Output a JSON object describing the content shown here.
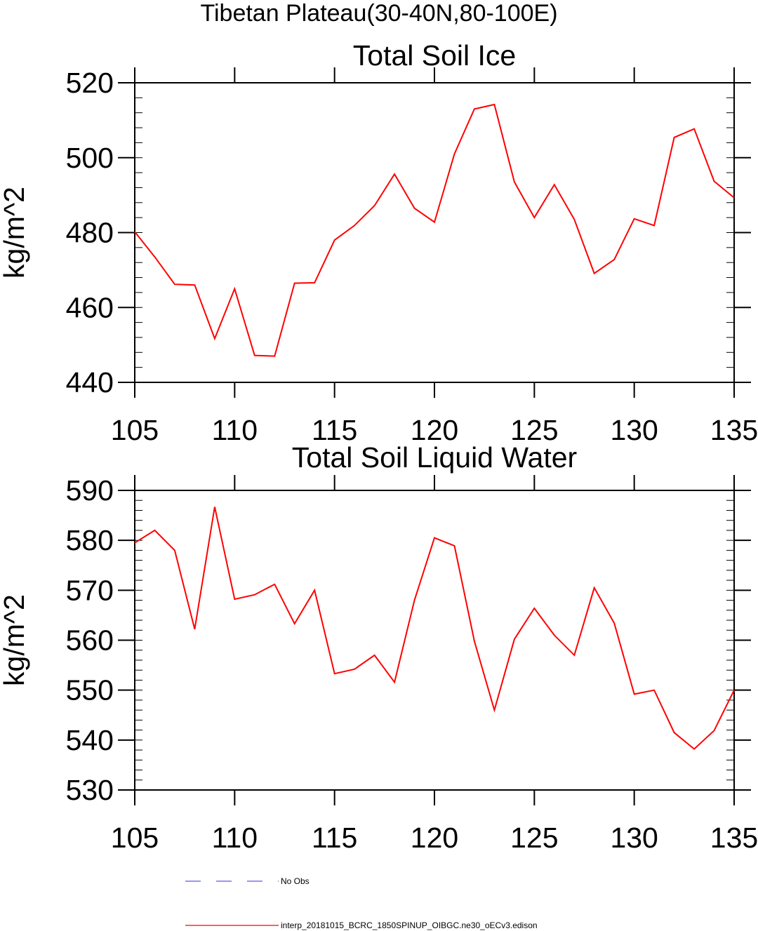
{
  "figure": {
    "suptitle": "Tibetan Plateau(30-40N,80-100E)",
    "legend": [
      {
        "label": "No Obs",
        "color": "#5a5ae6",
        "style": "dashed"
      },
      {
        "label": "interp_20181015_BCRC_1850SPINUP_OIBGC.ne30_oECv3.edison",
        "color": "#ff0000",
        "style": "solid"
      }
    ]
  },
  "chart_data": [
    {
      "type": "line",
      "title": "Total Soil Ice",
      "xlabel": "",
      "ylabel": "kg/m^2",
      "xlim": [
        105,
        135
      ],
      "ylim": [
        440,
        520
      ],
      "xticks": [
        105,
        110,
        115,
        120,
        125,
        130,
        135
      ],
      "yticks": [
        440,
        460,
        480,
        500,
        520
      ],
      "y_minor_step": 4,
      "grid": false,
      "series": [
        {
          "color": "#ff0000",
          "x": [
            105,
            106,
            107,
            108,
            109,
            110,
            111,
            112,
            113,
            114,
            115,
            116,
            117,
            118,
            119,
            120,
            121,
            122,
            123,
            124,
            125,
            126,
            127,
            128,
            129,
            130,
            131,
            132,
            133,
            134,
            135
          ],
          "values": [
            480.2,
            473.5,
            466.2,
            466.0,
            451.7,
            465.0,
            447.2,
            447.0,
            466.5,
            466.6,
            478.0,
            481.9,
            487.2,
            495.6,
            486.5,
            482.8,
            501.0,
            513.0,
            514.2,
            493.5,
            484.0,
            492.8,
            483.5,
            469.1,
            472.8,
            483.7,
            481.9,
            505.4,
            507.7,
            493.7,
            489.3
          ]
        }
      ]
    },
    {
      "type": "line",
      "title": "Total Soil Liquid Water",
      "xlabel": "",
      "ylabel": "kg/m^2",
      "xlim": [
        105,
        135
      ],
      "ylim": [
        530,
        590
      ],
      "xticks": [
        105,
        110,
        115,
        120,
        125,
        130,
        135
      ],
      "yticks": [
        530,
        540,
        550,
        560,
        570,
        580,
        590
      ],
      "y_minor_step": 2,
      "grid": false,
      "series": [
        {
          "color": "#ff0000",
          "x": [
            105,
            106,
            107,
            108,
            109,
            110,
            111,
            112,
            113,
            114,
            115,
            116,
            117,
            118,
            119,
            120,
            121,
            122,
            123,
            124,
            125,
            126,
            127,
            128,
            129,
            130,
            131,
            132,
            133,
            134,
            135
          ],
          "values": [
            579.5,
            582.0,
            578.0,
            562.2,
            586.7,
            568.2,
            569.1,
            571.2,
            563.3,
            570.0,
            553.3,
            554.2,
            557.0,
            551.6,
            568.0,
            580.5,
            578.9,
            559.8,
            546.0,
            560.2,
            566.4,
            561.0,
            557.0,
            570.5,
            563.4,
            549.2,
            550.0,
            541.5,
            538.2,
            541.9,
            550.0
          ]
        }
      ]
    }
  ]
}
